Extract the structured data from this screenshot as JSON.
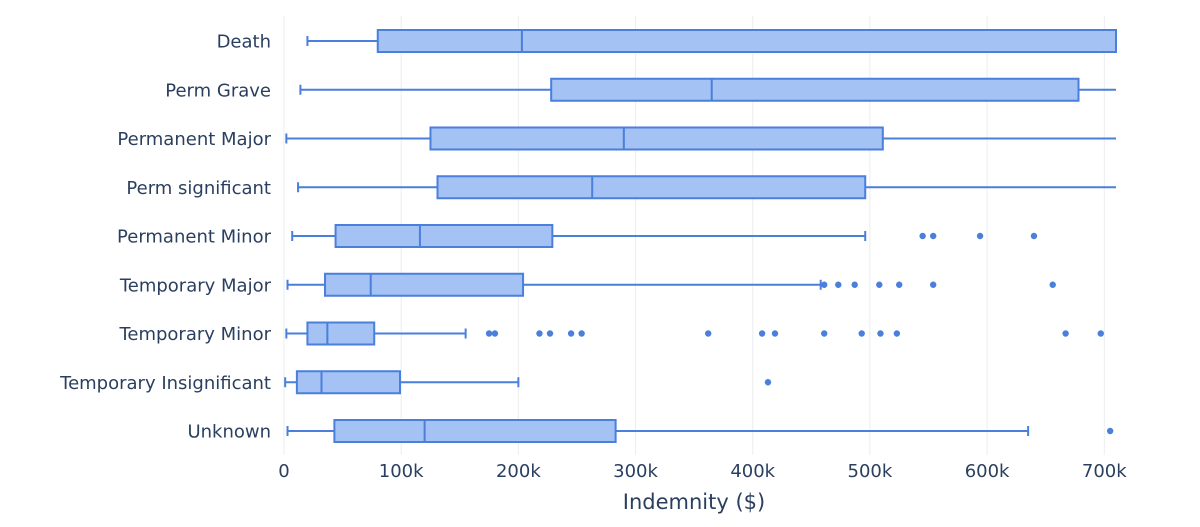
{
  "chart_data": {
    "type": "box",
    "orientation": "horizontal",
    "title": "",
    "xlabel": "Indemnity ($)",
    "ylabel": "",
    "xlim": [
      0,
      710000
    ],
    "x_ticks": [
      0,
      100000,
      200000,
      300000,
      400000,
      500000,
      600000,
      700000
    ],
    "x_tick_labels": [
      "0",
      "100k",
      "200k",
      "300k",
      "400k",
      "500k",
      "600k",
      "700k"
    ],
    "grid": true,
    "colors": {
      "fill": "#a4c2f4",
      "line": "#4a7fdc",
      "grid": "#ebedf2",
      "text": "#2a3f5f"
    },
    "categories": [
      "Death",
      "Perm Grave",
      "Permanent Major",
      "Perm significant",
      "Permanent Minor",
      "Temporary Major",
      "Temporary Minor",
      "Temporary Insignificant",
      "Unknown"
    ],
    "boxes": [
      {
        "name": "Death",
        "min": 20000,
        "q1": 80000,
        "median": 203000,
        "q3": 710000,
        "max": 710000,
        "outliers": []
      },
      {
        "name": "Perm Grave",
        "min": 14000,
        "q1": 228000,
        "median": 365000,
        "q3": 678000,
        "max": 710000,
        "outliers": []
      },
      {
        "name": "Permanent Major",
        "min": 2000,
        "q1": 125000,
        "median": 290000,
        "q3": 511000,
        "max": 710000,
        "outliers": []
      },
      {
        "name": "Perm significant",
        "min": 12000,
        "q1": 131000,
        "median": 263000,
        "q3": 496000,
        "max": 710000,
        "outliers": []
      },
      {
        "name": "Permanent Minor",
        "min": 7000,
        "q1": 44000,
        "median": 116000,
        "q3": 229000,
        "max": 496000,
        "outliers": [
          545000,
          554000,
          594000,
          640000
        ]
      },
      {
        "name": "Temporary Major",
        "min": 3000,
        "q1": 35000,
        "median": 74000,
        "q3": 204000,
        "max": 458000,
        "outliers": [
          461000,
          473000,
          487000,
          508000,
          525000,
          554000,
          656000
        ]
      },
      {
        "name": "Temporary Minor",
        "min": 2000,
        "q1": 20000,
        "median": 37000,
        "q3": 77000,
        "max": 155000,
        "outliers": [
          175000,
          180000,
          218000,
          227000,
          245000,
          254000,
          362000,
          408000,
          419000,
          461000,
          493000,
          509000,
          523000,
          667000,
          697000
        ]
      },
      {
        "name": "Temporary Insignificant",
        "min": 1000,
        "q1": 11000,
        "median": 32000,
        "q3": 99000,
        "max": 200000,
        "outliers": [
          413000
        ]
      },
      {
        "name": "Unknown",
        "min": 3000,
        "q1": 43000,
        "median": 120000,
        "q3": 283000,
        "max": 635000,
        "outliers": [
          705000
        ]
      }
    ]
  }
}
